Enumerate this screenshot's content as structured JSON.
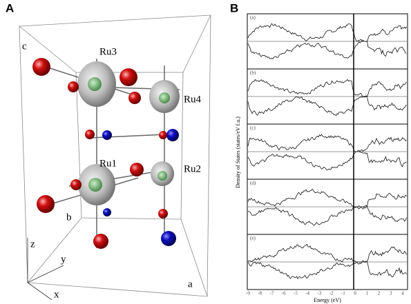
{
  "panel_a": {
    "label": "A",
    "atoms": [
      "Ru3",
      "Ru4",
      "Ru1",
      "Ru2"
    ],
    "axes": [
      "a",
      "b",
      "c"
    ],
    "frame": [
      "x",
      "y",
      "z"
    ]
  },
  "panel_b": {
    "label": "B",
    "y_label": "Density of States (states/eV f.u.)",
    "x_label": "Energy (eV)",
    "panels": [
      "(a)",
      "(b)",
      "(c)",
      "(d)",
      "(e)"
    ],
    "x_ticks": [
      "-9",
      "-8",
      "-7",
      "-6",
      "-5",
      "-4",
      "-3",
      "-2",
      "-1",
      "0",
      "1",
      "2",
      "3",
      "4"
    ]
  }
}
